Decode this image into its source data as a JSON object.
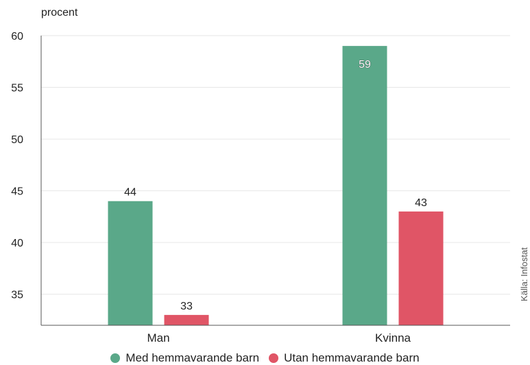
{
  "chart_data": {
    "type": "bar",
    "ylabel": "procent",
    "ylim": [
      32,
      60
    ],
    "yticks": [
      35,
      40,
      45,
      50,
      55,
      60
    ],
    "categories": [
      "Man",
      "Kvinna"
    ],
    "series": [
      {
        "name": "Med hemmavarande barn",
        "values": [
          44,
          59
        ],
        "color": "#5aa889"
      },
      {
        "name": "Utan hemmavarande barn",
        "values": [
          33,
          43
        ],
        "color": "#e05566"
      }
    ],
    "grid": true,
    "legend": "bottom-center",
    "source": "Källa: Infostat"
  }
}
